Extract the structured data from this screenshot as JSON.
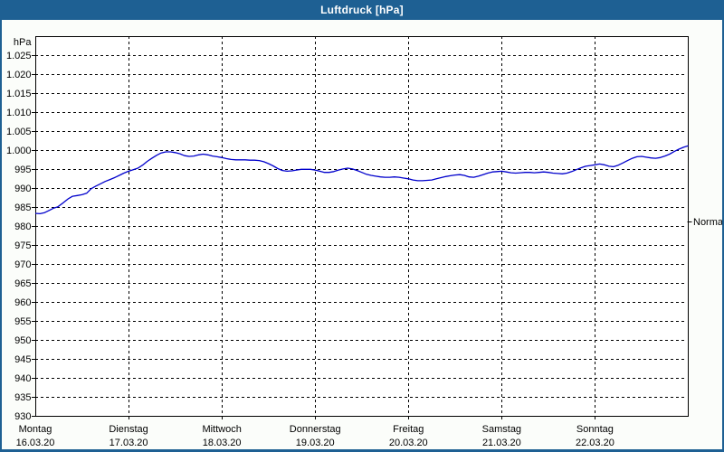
{
  "window": {
    "title": "Luftdruck [hPa]",
    "titlebar_color": "#1E6093",
    "frame_color": "#1E6093",
    "content_background": "#FBFDFA",
    "plot_background": "#FFFFFF"
  },
  "chart_data": {
    "type": "line",
    "title": "Luftdruck [hPa]",
    "ylabel_unit": "hPa",
    "ylim": [
      930,
      1027.5
    ],
    "grid": true,
    "grid_style": "dashed-black",
    "line_color": "#0000CC",
    "y_ticks": [
      {
        "value": 1025,
        "label": "1.025"
      },
      {
        "value": 1020,
        "label": "1.020"
      },
      {
        "value": 1015,
        "label": "1.015"
      },
      {
        "value": 1010,
        "label": "1.010"
      },
      {
        "value": 1005,
        "label": "1.005"
      },
      {
        "value": 1000,
        "label": "1.000"
      },
      {
        "value": 995,
        "label": "995"
      },
      {
        "value": 990,
        "label": "990"
      },
      {
        "value": 985,
        "label": "985"
      },
      {
        "value": 980,
        "label": "980"
      },
      {
        "value": 975,
        "label": "975"
      },
      {
        "value": 970,
        "label": "970"
      },
      {
        "value": 965,
        "label": "965"
      },
      {
        "value": 960,
        "label": "960"
      },
      {
        "value": 955,
        "label": "955"
      },
      {
        "value": 950,
        "label": "950"
      },
      {
        "value": 945,
        "label": "945"
      },
      {
        "value": 940,
        "label": "940"
      },
      {
        "value": 935,
        "label": "935"
      },
      {
        "value": 930,
        "label": "930"
      }
    ],
    "x_days": [
      {
        "name": "Montag",
        "date": "16.03.20"
      },
      {
        "name": "Dienstag",
        "date": "17.03.20"
      },
      {
        "name": "Mittwoch",
        "date": "18.03.20"
      },
      {
        "name": "Donnerstag",
        "date": "19.03.20"
      },
      {
        "name": "Freitag",
        "date": "20.03.20"
      },
      {
        "name": "Samstag",
        "date": "21.03.20"
      },
      {
        "name": "Sonntag",
        "date": "22.03.20"
      }
    ],
    "normal_marker": {
      "label": "Normal",
      "value": 981.3
    },
    "series": [
      {
        "name": "Luftdruck",
        "x_unit": "days_from_monday_00h",
        "points": [
          [
            0.0,
            983.4
          ],
          [
            0.05,
            983.3
          ],
          [
            0.1,
            983.6
          ],
          [
            0.15,
            984.2
          ],
          [
            0.2,
            984.8
          ],
          [
            0.24,
            985.1
          ],
          [
            0.3,
            986.2
          ],
          [
            0.35,
            987.2
          ],
          [
            0.4,
            987.9
          ],
          [
            0.45,
            988.1
          ],
          [
            0.5,
            988.3
          ],
          [
            0.55,
            988.7
          ],
          [
            0.6,
            989.9
          ],
          [
            0.65,
            990.6
          ],
          [
            0.7,
            991.2
          ],
          [
            0.75,
            991.8
          ],
          [
            0.8,
            992.3
          ],
          [
            0.85,
            992.8
          ],
          [
            0.9,
            993.4
          ],
          [
            0.95,
            994.0
          ],
          [
            1.0,
            994.5
          ],
          [
            1.05,
            994.9
          ],
          [
            1.1,
            995.3
          ],
          [
            1.15,
            996.1
          ],
          [
            1.2,
            997.1
          ],
          [
            1.25,
            997.9
          ],
          [
            1.3,
            998.7
          ],
          [
            1.35,
            999.3
          ],
          [
            1.4,
            999.6
          ],
          [
            1.45,
            999.6
          ],
          [
            1.5,
            999.4
          ],
          [
            1.55,
            999.1
          ],
          [
            1.6,
            998.6
          ],
          [
            1.65,
            998.4
          ],
          [
            1.7,
            998.5
          ],
          [
            1.75,
            998.8
          ],
          [
            1.8,
            999.0
          ],
          [
            1.85,
            998.8
          ],
          [
            1.9,
            998.5
          ],
          [
            1.95,
            998.3
          ],
          [
            2.0,
            998.1
          ],
          [
            2.05,
            997.8
          ],
          [
            2.1,
            997.6
          ],
          [
            2.15,
            997.5
          ],
          [
            2.2,
            997.5
          ],
          [
            2.25,
            997.5
          ],
          [
            2.3,
            997.4
          ],
          [
            2.35,
            997.4
          ],
          [
            2.4,
            997.3
          ],
          [
            2.45,
            997.0
          ],
          [
            2.5,
            996.5
          ],
          [
            2.55,
            995.9
          ],
          [
            2.6,
            995.2
          ],
          [
            2.65,
            994.7
          ],
          [
            2.7,
            994.5
          ],
          [
            2.75,
            994.6
          ],
          [
            2.8,
            994.8
          ],
          [
            2.85,
            995.0
          ],
          [
            2.9,
            995.0
          ],
          [
            2.95,
            995.0
          ],
          [
            3.0,
            994.8
          ],
          [
            3.05,
            994.5
          ],
          [
            3.1,
            994.2
          ],
          [
            3.15,
            994.2
          ],
          [
            3.2,
            994.4
          ],
          [
            3.25,
            994.8
          ],
          [
            3.3,
            995.1
          ],
          [
            3.35,
            995.3
          ],
          [
            3.4,
            995.1
          ],
          [
            3.45,
            994.7
          ],
          [
            3.5,
            994.2
          ],
          [
            3.55,
            993.7
          ],
          [
            3.6,
            993.4
          ],
          [
            3.65,
            993.2
          ],
          [
            3.7,
            993.0
          ],
          [
            3.75,
            992.9
          ],
          [
            3.8,
            992.9
          ],
          [
            3.85,
            993.0
          ],
          [
            3.9,
            992.9
          ],
          [
            3.95,
            992.7
          ],
          [
            4.0,
            992.5
          ],
          [
            4.05,
            992.2
          ],
          [
            4.1,
            992.0
          ],
          [
            4.15,
            992.0
          ],
          [
            4.2,
            992.1
          ],
          [
            4.25,
            992.2
          ],
          [
            4.3,
            992.5
          ],
          [
            4.35,
            992.8
          ],
          [
            4.4,
            993.1
          ],
          [
            4.45,
            993.3
          ],
          [
            4.5,
            993.5
          ],
          [
            4.55,
            993.6
          ],
          [
            4.6,
            993.4
          ],
          [
            4.65,
            993.0
          ],
          [
            4.7,
            992.9
          ],
          [
            4.75,
            993.2
          ],
          [
            4.8,
            993.6
          ],
          [
            4.85,
            994.0
          ],
          [
            4.9,
            994.3
          ],
          [
            4.95,
            994.4
          ],
          [
            5.0,
            994.5
          ],
          [
            5.05,
            994.3
          ],
          [
            5.1,
            994.1
          ],
          [
            5.15,
            994.0
          ],
          [
            5.2,
            994.1
          ],
          [
            5.25,
            994.2
          ],
          [
            5.3,
            994.2
          ],
          [
            5.35,
            994.1
          ],
          [
            5.4,
            994.2
          ],
          [
            5.45,
            994.3
          ],
          [
            5.5,
            994.2
          ],
          [
            5.55,
            994.0
          ],
          [
            5.6,
            993.9
          ],
          [
            5.65,
            993.8
          ],
          [
            5.7,
            994.0
          ],
          [
            5.75,
            994.4
          ],
          [
            5.8,
            994.9
          ],
          [
            5.85,
            995.4
          ],
          [
            5.9,
            995.8
          ],
          [
            5.95,
            996.0
          ],
          [
            6.0,
            996.2
          ],
          [
            6.05,
            996.4
          ],
          [
            6.1,
            996.2
          ],
          [
            6.15,
            995.8
          ],
          [
            6.2,
            995.7
          ],
          [
            6.25,
            996.1
          ],
          [
            6.3,
            996.7
          ],
          [
            6.35,
            997.3
          ],
          [
            6.4,
            997.9
          ],
          [
            6.45,
            998.3
          ],
          [
            6.5,
            998.4
          ],
          [
            6.55,
            998.2
          ],
          [
            6.6,
            998.0
          ],
          [
            6.65,
            997.9
          ],
          [
            6.7,
            998.1
          ],
          [
            6.75,
            998.5
          ],
          [
            6.8,
            999.0
          ],
          [
            6.85,
            999.7
          ],
          [
            6.9,
            1000.3
          ],
          [
            6.95,
            1000.8
          ],
          [
            7.0,
            1001.2
          ]
        ]
      }
    ]
  }
}
